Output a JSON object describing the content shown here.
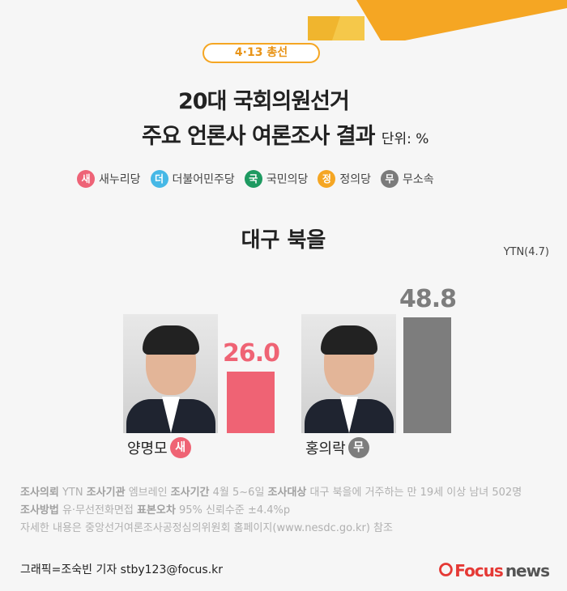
{
  "tag": "4·13 총선",
  "title_line1": "20대 국회의원선거",
  "title_line2": "주요 언론사 여론조사 결과",
  "unit": "단위: %",
  "legend": [
    {
      "badge": "새",
      "label": "새누리당",
      "color": "#ee6377"
    },
    {
      "badge": "더",
      "label": "더불어민주당",
      "color": "#46b8e6"
    },
    {
      "badge": "국",
      "label": "국민의당",
      "color": "#1e9a61"
    },
    {
      "badge": "정",
      "label": "정의당",
      "color": "#f5a623"
    },
    {
      "badge": "무",
      "label": "무소속",
      "color": "#7b7b7b"
    }
  ],
  "region": "대구 북을",
  "source": "YTN(4.7)",
  "chart_data": {
    "type": "bar",
    "categories": [
      "양명모",
      "홍의락"
    ],
    "values": [
      26.0,
      48.8
    ],
    "labels": [
      "26.0",
      "48.8"
    ],
    "parties": [
      "새",
      "무"
    ],
    "colors": [
      "#ef6374",
      "#7d7d7d"
    ],
    "ylim": [
      0,
      55
    ]
  },
  "notes": {
    "l1": [
      {
        "b": "조사의뢰",
        "t": " YTN "
      },
      {
        "b": "조사기관",
        "t": " 엠브레인 "
      },
      {
        "b": "조사기간",
        "t": " 4월 5~6일 "
      },
      {
        "b": "조사대상",
        "t": " 대구 북을에 거주하는 만 19세 이상 남녀 502명"
      }
    ],
    "l2": [
      {
        "b": "조사방법",
        "t": " 유·무선전화면접  "
      },
      {
        "b": "표본오차",
        "t": " 95% 신뢰수준 ±4.4%p"
      }
    ],
    "l3": "자세한 내용은 중앙선거여론조사공정심의위원회 홈페이지(www.nesdc.go.kr) 참조"
  },
  "credit": "그래픽=조숙빈 기자 stby123@focus.kr",
  "logo": {
    "focus": "Focus",
    "news": "news"
  }
}
